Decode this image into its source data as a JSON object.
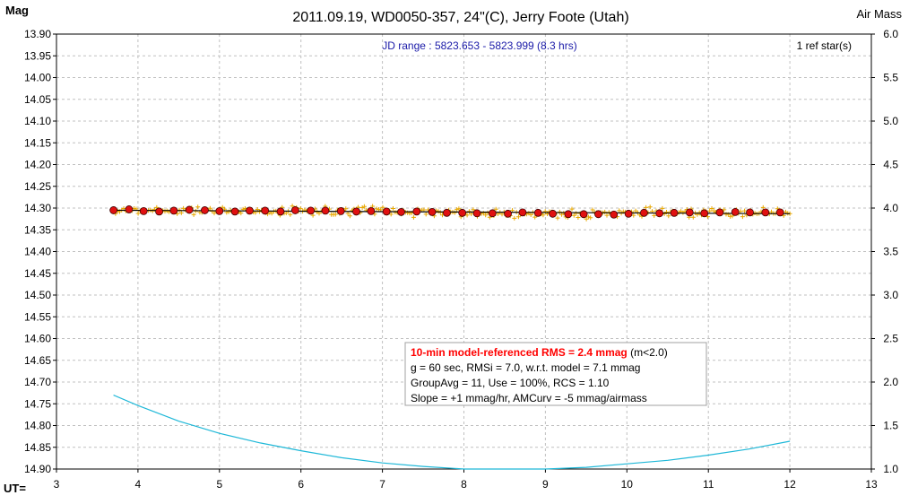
{
  "chart_data": {
    "type": "scatter",
    "title": "2011.09.19, WD0050-357, 24\"(C), Jerry Foote (Utah)",
    "left_axis_label": "Mag",
    "right_axis_label": "Air Mass",
    "x_axis_label": "UT=",
    "jd_range": "JD range : 5823.653 - 5823.999 (8.3 hrs)",
    "ref_stars": "1 ref star(s)",
    "xlim": [
      3,
      13
    ],
    "ylim_mag": [
      13.9,
      14.9
    ],
    "ylim_airmass": [
      1.0,
      6.0
    ],
    "x_ticks": [
      "3",
      "4",
      "5",
      "6",
      "7",
      "8",
      "9",
      "10",
      "11",
      "12",
      "13"
    ],
    "y_ticks_left": [
      "13.90",
      "13.95",
      "14.00",
      "14.05",
      "14.10",
      "14.15",
      "14.20",
      "14.25",
      "14.30",
      "14.35",
      "14.40",
      "14.45",
      "14.50",
      "14.55",
      "14.60",
      "14.65",
      "14.70",
      "14.75",
      "14.80",
      "14.85",
      "14.90"
    ],
    "y_ticks_right": [
      "6.0",
      "5.5",
      "5.0",
      "4.5",
      "4.0",
      "3.5",
      "3.0",
      "2.5",
      "2.0",
      "1.5",
      "1.0"
    ],
    "grid": true,
    "info_box": {
      "line1_red": "10-min model-referenced RMS = 2.4 mmag",
      "line1_suffix": " (m<2.0)",
      "line2": "g = 60 sec, RMSi = 7.0, w.r.t. model = 7.1 mmag",
      "line3": "GroupAvg = 11, Use = 100%, RCS = 1.10",
      "line4": "Slope = +1 mmag/hr, AMCurv = -5 mmag/airmass"
    },
    "series": [
      {
        "name": "group averages",
        "color": "#e01010",
        "x": [
          3.7,
          3.89,
          4.07,
          4.26,
          4.44,
          4.63,
          4.82,
          5.0,
          5.19,
          5.37,
          5.56,
          5.75,
          5.93,
          6.12,
          6.3,
          6.49,
          6.68,
          6.86,
          7.05,
          7.23,
          7.42,
          7.61,
          7.79,
          7.98,
          8.16,
          8.35,
          8.54,
          8.72,
          8.91,
          9.09,
          9.28,
          9.47,
          9.65,
          9.84,
          10.02,
          10.21,
          10.4,
          10.58,
          10.77,
          10.95,
          11.14,
          11.33,
          11.51,
          11.7,
          11.88
        ],
        "y": [
          14.305,
          14.303,
          14.307,
          14.308,
          14.306,
          14.304,
          14.305,
          14.307,
          14.308,
          14.306,
          14.306,
          14.308,
          14.305,
          14.306,
          14.306,
          14.307,
          14.308,
          14.307,
          14.308,
          14.309,
          14.308,
          14.309,
          14.311,
          14.311,
          14.312,
          14.312,
          14.313,
          14.31,
          14.311,
          14.313,
          14.314,
          14.314,
          14.314,
          14.315,
          14.313,
          14.311,
          14.312,
          14.311,
          14.31,
          14.312,
          14.31,
          14.309,
          14.31,
          14.31,
          14.31
        ]
      },
      {
        "name": "air mass",
        "color": "#1fb8d8",
        "x": [
          3.7,
          4.0,
          4.5,
          5.0,
          5.5,
          6.0,
          6.5,
          7.0,
          7.5,
          8.0,
          8.5,
          9.0,
          9.5,
          10.0,
          10.5,
          11.0,
          11.5,
          12.0
        ],
        "y": [
          1.85,
          1.73,
          1.55,
          1.41,
          1.3,
          1.21,
          1.13,
          1.07,
          1.03,
          1.0,
          0.99,
          1.0,
          1.02,
          1.06,
          1.1,
          1.16,
          1.23,
          1.32
        ]
      },
      {
        "name": "raw measurements",
        "color": "#e8a800",
        "x_range": [
          3.7,
          12.0
        ],
        "center_mag": 14.308,
        "scatter_mmag": 7
      },
      {
        "name": "model fit",
        "color": "#000000",
        "x": [
          3.7,
          12.0
        ],
        "y": [
          14.305,
          14.313
        ]
      }
    ]
  }
}
